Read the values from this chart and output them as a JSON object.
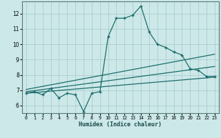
{
  "title": "",
  "xlabel": "Humidex (Indice chaleur)",
  "bg_color": "#cce8e8",
  "grid_color": "#b0d0d0",
  "line_color": "#1a6b6b",
  "xlim": [
    -0.5,
    23.5
  ],
  "ylim": [
    5.5,
    12.8
  ],
  "xticks": [
    0,
    1,
    2,
    3,
    4,
    5,
    6,
    7,
    8,
    9,
    10,
    11,
    12,
    13,
    14,
    15,
    16,
    17,
    18,
    19,
    20,
    21,
    22,
    23
  ],
  "yticks": [
    6,
    7,
    8,
    9,
    10,
    11,
    12
  ],
  "main_x": [
    0,
    1,
    2,
    3,
    4,
    5,
    6,
    7,
    8,
    9,
    10,
    11,
    12,
    13,
    14,
    15,
    16,
    17,
    18,
    19,
    20,
    21,
    22,
    23
  ],
  "main_y": [
    6.8,
    6.9,
    6.7,
    7.1,
    6.5,
    6.8,
    6.7,
    5.6,
    6.8,
    6.9,
    10.5,
    11.7,
    11.7,
    11.9,
    12.5,
    10.8,
    10.0,
    9.8,
    9.5,
    9.3,
    8.4,
    8.3,
    7.9,
    7.9
  ],
  "line1_x": [
    0,
    23
  ],
  "line1_y": [
    6.8,
    7.85
  ],
  "line2_x": [
    0,
    23
  ],
  "line2_y": [
    6.9,
    8.55
  ],
  "line3_x": [
    0,
    23
  ],
  "line3_y": [
    7.05,
    9.35
  ]
}
